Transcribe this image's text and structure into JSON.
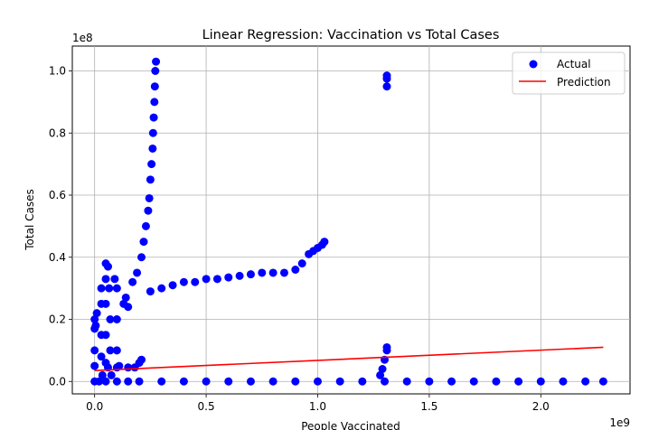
{
  "chart_data": {
    "type": "scatter",
    "title": "Linear Regression: Vaccination vs Total Cases",
    "xlabel": "People Vaccinated",
    "ylabel": "Total Cases",
    "x_multiplier": "1e9",
    "y_multiplier": "1e8",
    "xlim": [
      -0.1,
      2.4
    ],
    "ylim": [
      -0.04,
      1.08
    ],
    "x_ticks": [
      0.0,
      0.5,
      1.0,
      1.5,
      2.0
    ],
    "x_tick_labels": [
      "0.0",
      "0.5",
      "1.0",
      "1.5",
      "2.0"
    ],
    "y_ticks": [
      0.0,
      0.2,
      0.4,
      0.6,
      0.8,
      1.0
    ],
    "y_tick_labels": [
      "0.0",
      "0.2",
      "0.4",
      "0.6",
      "0.8",
      "1.0"
    ],
    "grid": true,
    "legend_position": "top-right",
    "series": [
      {
        "name": "Actual",
        "kind": "scatter",
        "color": "#0000ff",
        "points": [
          [
            0.0,
            0.0
          ],
          [
            0.02,
            0.0
          ],
          [
            0.05,
            0.0
          ],
          [
            0.1,
            0.0
          ],
          [
            0.15,
            0.0
          ],
          [
            0.2,
            0.0
          ],
          [
            0.3,
            0.0
          ],
          [
            0.4,
            0.0
          ],
          [
            0.5,
            0.0
          ],
          [
            0.6,
            0.0
          ],
          [
            0.7,
            0.0
          ],
          [
            0.8,
            0.0
          ],
          [
            0.9,
            0.0
          ],
          [
            1.0,
            0.0
          ],
          [
            1.1,
            0.0
          ],
          [
            1.2,
            0.0
          ],
          [
            1.3,
            0.0
          ],
          [
            1.4,
            0.0
          ],
          [
            1.5,
            0.0
          ],
          [
            1.6,
            0.0
          ],
          [
            1.7,
            0.0
          ],
          [
            1.8,
            0.0
          ],
          [
            1.9,
            0.0
          ],
          [
            2.0,
            0.0
          ],
          [
            2.1,
            0.0
          ],
          [
            2.2,
            0.0
          ],
          [
            2.28,
            0.0
          ],
          [
            0.0,
            0.2
          ],
          [
            0.0,
            0.17
          ],
          [
            0.0,
            0.1
          ],
          [
            0.0,
            0.05
          ],
          [
            0.005,
            0.18
          ],
          [
            0.01,
            0.22
          ],
          [
            0.03,
            0.3
          ],
          [
            0.03,
            0.25
          ],
          [
            0.03,
            0.15
          ],
          [
            0.03,
            0.08
          ],
          [
            0.035,
            0.02
          ],
          [
            0.05,
            0.38
          ],
          [
            0.05,
            0.33
          ],
          [
            0.05,
            0.25
          ],
          [
            0.05,
            0.15
          ],
          [
            0.05,
            0.06
          ],
          [
            0.06,
            0.37
          ],
          [
            0.065,
            0.3
          ],
          [
            0.07,
            0.2
          ],
          [
            0.07,
            0.1
          ],
          [
            0.075,
            0.02
          ],
          [
            0.09,
            0.33
          ],
          [
            0.1,
            0.3
          ],
          [
            0.1,
            0.2
          ],
          [
            0.1,
            0.1
          ],
          [
            0.11,
            0.05
          ],
          [
            0.06,
            0.045
          ],
          [
            0.1,
            0.045
          ],
          [
            0.15,
            0.045
          ],
          [
            0.18,
            0.045
          ],
          [
            0.13,
            0.25
          ],
          [
            0.14,
            0.27
          ],
          [
            0.15,
            0.24
          ],
          [
            0.17,
            0.32
          ],
          [
            0.19,
            0.35
          ],
          [
            0.21,
            0.4
          ],
          [
            0.22,
            0.45
          ],
          [
            0.23,
            0.5
          ],
          [
            0.2,
            0.06
          ],
          [
            0.21,
            0.07
          ],
          [
            0.24,
            0.55
          ],
          [
            0.245,
            0.59
          ],
          [
            0.25,
            0.65
          ],
          [
            0.255,
            0.7
          ],
          [
            0.26,
            0.75
          ],
          [
            0.262,
            0.8
          ],
          [
            0.265,
            0.85
          ],
          [
            0.268,
            0.9
          ],
          [
            0.27,
            0.95
          ],
          [
            0.272,
            1.0
          ],
          [
            0.275,
            1.03
          ],
          [
            0.25,
            0.29
          ],
          [
            0.3,
            0.3
          ],
          [
            0.35,
            0.31
          ],
          [
            0.4,
            0.32
          ],
          [
            0.45,
            0.32
          ],
          [
            0.5,
            0.33
          ],
          [
            0.55,
            0.33
          ],
          [
            0.6,
            0.335
          ],
          [
            0.65,
            0.34
          ],
          [
            0.7,
            0.345
          ],
          [
            0.75,
            0.35
          ],
          [
            0.8,
            0.35
          ],
          [
            0.85,
            0.35
          ],
          [
            0.9,
            0.36
          ],
          [
            0.93,
            0.38
          ],
          [
            0.96,
            0.41
          ],
          [
            0.98,
            0.42
          ],
          [
            1.0,
            0.43
          ],
          [
            1.02,
            0.44
          ],
          [
            1.03,
            0.45
          ],
          [
            1.28,
            0.02
          ],
          [
            1.29,
            0.04
          ],
          [
            1.3,
            0.07
          ],
          [
            1.31,
            0.1
          ],
          [
            1.31,
            0.11
          ],
          [
            1.31,
            0.95
          ],
          [
            1.31,
            0.975
          ],
          [
            1.31,
            0.985
          ]
        ]
      },
      {
        "name": "Prediction",
        "kind": "line",
        "color": "#ff0000",
        "x": [
          0.0,
          2.28
        ],
        "y": [
          0.035,
          0.11
        ]
      }
    ]
  }
}
